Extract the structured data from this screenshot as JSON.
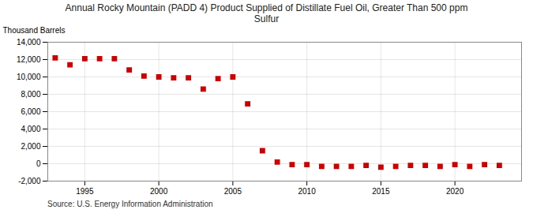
{
  "chart_data": {
    "type": "scatter",
    "title": "Annual Rocky Mountain (PADD 4) Product Supplied of Distillate Fuel Oil, Greater Than 500 ppm\nSulfur",
    "ylabel": "Thousand Barrels",
    "source": "Source: U.S. Energy Information Administration",
    "x": [
      1993,
      1994,
      1995,
      1996,
      1997,
      1998,
      1999,
      2000,
      2001,
      2002,
      2003,
      2004,
      2005,
      2006,
      2007,
      2008,
      2009,
      2010,
      2011,
      2012,
      2013,
      2014,
      2015,
      2016,
      2017,
      2018,
      2019,
      2020,
      2021,
      2022,
      2023
    ],
    "values": [
      12200,
      11400,
      12100,
      12100,
      12100,
      10800,
      10100,
      10000,
      9900,
      9900,
      8600,
      9800,
      10000,
      6900,
      1500,
      200,
      -100,
      -100,
      -300,
      -300,
      -300,
      -200,
      -400,
      -300,
      -200,
      -200,
      -300,
      -100,
      -300,
      -100,
      -200
    ],
    "color": "#cc0000",
    "marker": "square",
    "xlim": [
      1992.5,
      2024.5
    ],
    "xticks": [
      1995,
      2000,
      2005,
      2010,
      2015,
      2020
    ],
    "ylim": [
      -2000,
      14000
    ],
    "yticks": [
      {
        "value": -2000,
        "label": "-2,000"
      },
      0,
      {
        "value": 2000,
        "label": "2,000"
      },
      {
        "value": 4000,
        "label": "4,000"
      },
      {
        "value": 6000,
        "label": "6,000"
      },
      {
        "value": 8000,
        "label": "8,000"
      },
      {
        "value": 10000,
        "label": "10,000"
      },
      {
        "value": 12000,
        "label": "12,000"
      },
      {
        "value": 14000,
        "label": "14,000"
      }
    ],
    "grid": true
  }
}
